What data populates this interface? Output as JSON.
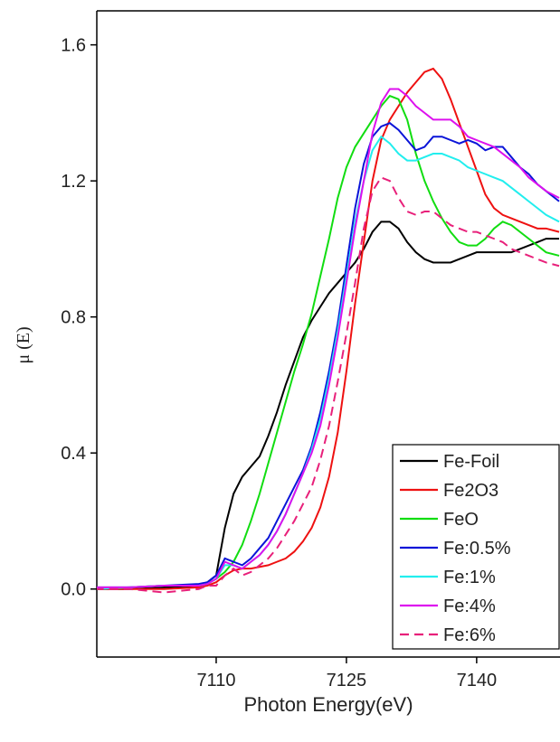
{
  "chart_data": {
    "type": "line",
    "x_label": "Photon Energy(eV)",
    "y_label": "μ (E)",
    "xlim": [
      7096.25,
      7149.6
    ],
    "ylim": [
      -0.2,
      1.7
    ],
    "xticks": [
      7110,
      7125,
      7140
    ],
    "yticks": [
      {
        "value": 0,
        "label": "0.0"
      },
      0.4,
      0.8,
      1.2,
      1.6
    ],
    "legend": "lower right",
    "x": [
      7096,
      7100,
      7104,
      7108,
      7109,
      7110,
      7111,
      7112,
      7113,
      7114,
      7115,
      7116,
      7117,
      7118,
      7119,
      7120,
      7121,
      7122,
      7123,
      7124,
      7125,
      7126,
      7127,
      7128,
      7129,
      7130,
      7131,
      7132,
      7133,
      7134,
      7135,
      7136,
      7137,
      7138,
      7139,
      7140,
      7141,
      7142,
      7143,
      7144,
      7145,
      7146,
      7147,
      7148,
      7149.5
    ],
    "series": [
      {
        "name": "Fe-Foil",
        "color": "#000000",
        "line_style": "solid",
        "values": [
          0,
          0,
          0.005,
          0.01,
          0.02,
          0.04,
          0.18,
          0.28,
          0.33,
          0.36,
          0.39,
          0.45,
          0.52,
          0.6,
          0.67,
          0.74,
          0.79,
          0.83,
          0.87,
          0.9,
          0.93,
          0.96,
          1.0,
          1.05,
          1.08,
          1.08,
          1.06,
          1.02,
          0.99,
          0.97,
          0.96,
          0.96,
          0.96,
          0.97,
          0.98,
          0.99,
          0.99,
          0.99,
          0.99,
          0.99,
          1.0,
          1.01,
          1.02,
          1.03,
          1.03
        ]
      },
      {
        "name": "Fe2O3",
        "color": "#ee1111",
        "line_style": "solid",
        "values": [
          0,
          0,
          0,
          0.005,
          0.01,
          0.02,
          0.04,
          0.055,
          0.06,
          0.06,
          0.065,
          0.07,
          0.08,
          0.09,
          0.11,
          0.14,
          0.18,
          0.24,
          0.33,
          0.46,
          0.64,
          0.84,
          1.02,
          1.2,
          1.32,
          1.38,
          1.42,
          1.46,
          1.49,
          1.52,
          1.53,
          1.5,
          1.44,
          1.37,
          1.3,
          1.23,
          1.16,
          1.12,
          1.1,
          1.09,
          1.08,
          1.07,
          1.06,
          1.06,
          1.05
        ]
      },
      {
        "name": "FeO",
        "color": "#11dd11",
        "line_style": "solid",
        "values": [
          0,
          0.005,
          0.01,
          0.01,
          0.015,
          0.03,
          0.05,
          0.08,
          0.13,
          0.2,
          0.28,
          0.37,
          0.46,
          0.55,
          0.64,
          0.72,
          0.81,
          0.92,
          1.03,
          1.15,
          1.24,
          1.3,
          1.34,
          1.38,
          1.42,
          1.45,
          1.44,
          1.38,
          1.28,
          1.2,
          1.14,
          1.09,
          1.05,
          1.02,
          1.01,
          1.01,
          1.03,
          1.06,
          1.08,
          1.07,
          1.05,
          1.03,
          1.01,
          0.99,
          0.98
        ]
      },
      {
        "name": "Fe:0.5%",
        "color": "#0a14d8",
        "line_style": "solid",
        "values": [
          0.005,
          0.005,
          0.01,
          0.015,
          0.02,
          0.04,
          0.09,
          0.08,
          0.07,
          0.09,
          0.12,
          0.15,
          0.2,
          0.25,
          0.3,
          0.35,
          0.42,
          0.52,
          0.64,
          0.78,
          0.95,
          1.12,
          1.25,
          1.33,
          1.36,
          1.37,
          1.35,
          1.32,
          1.29,
          1.3,
          1.33,
          1.33,
          1.32,
          1.31,
          1.32,
          1.31,
          1.29,
          1.3,
          1.3,
          1.27,
          1.24,
          1.22,
          1.19,
          1.17,
          1.14
        ]
      },
      {
        "name": "Fe:1%",
        "color": "#22eeee",
        "line_style": "solid",
        "values": [
          0,
          0.005,
          0.01,
          0.01,
          0.015,
          0.03,
          0.07,
          0.07,
          0.06,
          0.08,
          0.1,
          0.13,
          0.17,
          0.22,
          0.28,
          0.34,
          0.41,
          0.5,
          0.62,
          0.76,
          0.92,
          1.08,
          1.2,
          1.29,
          1.33,
          1.31,
          1.28,
          1.26,
          1.26,
          1.27,
          1.28,
          1.28,
          1.27,
          1.26,
          1.24,
          1.23,
          1.22,
          1.21,
          1.2,
          1.18,
          1.16,
          1.14,
          1.12,
          1.1,
          1.08
        ]
      },
      {
        "name": "Fe:4%",
        "color": "#dd11ee",
        "line_style": "solid",
        "values": [
          0.005,
          0.005,
          0.01,
          0.01,
          0.015,
          0.03,
          0.08,
          0.07,
          0.06,
          0.08,
          0.1,
          0.13,
          0.17,
          0.22,
          0.28,
          0.34,
          0.4,
          0.48,
          0.6,
          0.74,
          0.9,
          1.06,
          1.2,
          1.34,
          1.43,
          1.47,
          1.47,
          1.45,
          1.42,
          1.4,
          1.38,
          1.38,
          1.38,
          1.36,
          1.33,
          1.32,
          1.31,
          1.3,
          1.28,
          1.26,
          1.24,
          1.21,
          1.19,
          1.17,
          1.15
        ]
      },
      {
        "name": "Fe:6%",
        "color": "#e8207a",
        "line_style": "dashed",
        "values": [
          0,
          0,
          -0.01,
          0,
          0.01,
          0.01,
          0.04,
          0.06,
          0.04,
          0.05,
          0.07,
          0.09,
          0.12,
          0.16,
          0.2,
          0.25,
          0.3,
          0.38,
          0.48,
          0.61,
          0.75,
          0.9,
          1.06,
          1.17,
          1.21,
          1.2,
          1.15,
          1.11,
          1.1,
          1.11,
          1.11,
          1.09,
          1.07,
          1.06,
          1.05,
          1.05,
          1.04,
          1.03,
          1.02,
          1.0,
          0.99,
          0.98,
          0.97,
          0.96,
          0.95
        ]
      }
    ]
  }
}
